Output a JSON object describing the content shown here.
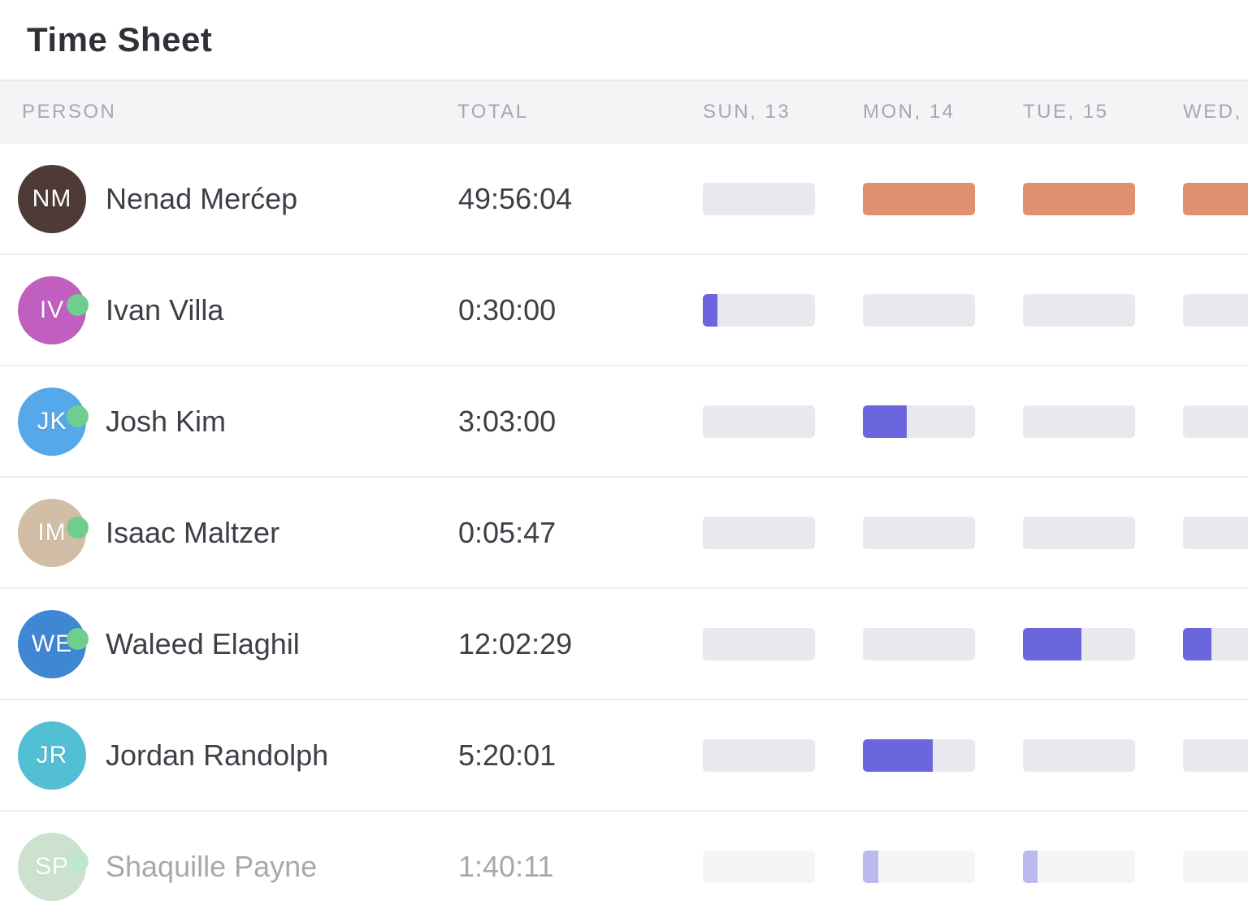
{
  "title": "Time Sheet",
  "colors": {
    "bar_track": "#e8e9ee",
    "orange": "#e09070",
    "purple": "#6c66de",
    "online_green": "#6fcd8e",
    "header_bg": "#f4f4f6",
    "header_text": "#a4a8b1",
    "name_text": "#3c4046"
  },
  "table": {
    "columns": {
      "person": "PERSON",
      "total": "TOTAL",
      "days": [
        "SUN, 13",
        "MON, 14",
        "TUE, 15",
        "WED,"
      ]
    },
    "rows": [
      {
        "name": "Nenad Merćep",
        "total": "49:56:04",
        "initials": "NM",
        "avatar_bg": "#4e3b36",
        "avatar_type": "photo",
        "online": false,
        "faded": false,
        "bar_color": "#e09070",
        "day_fill_pct": [
          0,
          100,
          100,
          100
        ]
      },
      {
        "name": "Ivan Villa",
        "total": "0:30:00",
        "initials": "IV",
        "avatar_bg": "#c05fc0",
        "avatar_type": "photo",
        "online": true,
        "faded": false,
        "bar_color": "#6c66de",
        "day_fill_pct": [
          13,
          0,
          0,
          0
        ]
      },
      {
        "name": "Josh Kim",
        "total": "3:03:00",
        "initials": "JK",
        "avatar_bg": "#55a8ea",
        "avatar_type": "photo",
        "online": true,
        "faded": false,
        "bar_color": "#6c66de",
        "day_fill_pct": [
          0,
          39,
          0,
          0
        ]
      },
      {
        "name": "Isaac Maltzer",
        "total": "0:05:47",
        "initials": "IM",
        "avatar_bg": "#d2bda6",
        "avatar_type": "photo",
        "online": true,
        "faded": false,
        "bar_color": "#6c66de",
        "day_fill_pct": [
          0,
          0,
          0,
          0
        ]
      },
      {
        "name": "Waleed Elaghil",
        "total": "12:02:29",
        "initials": "WE",
        "avatar_bg": "#3f87d2",
        "avatar_type": "initials",
        "online": true,
        "faded": false,
        "bar_color": "#6c66de",
        "day_fill_pct": [
          0,
          0,
          52,
          25
        ]
      },
      {
        "name": "Jordan Randolph",
        "total": "5:20:01",
        "initials": "JR",
        "avatar_bg": "#52bfd4",
        "avatar_type": "photo",
        "online": false,
        "faded": false,
        "bar_color": "#6c66de",
        "day_fill_pct": [
          0,
          62,
          0,
          0
        ]
      },
      {
        "name": "Shaquille Payne",
        "total": "1:40:11",
        "initials": "SP",
        "avatar_bg": "#8fbf97",
        "avatar_type": "photo",
        "online": true,
        "faded": true,
        "bar_color": "#6c66de",
        "day_fill_pct": [
          0,
          14,
          13,
          0
        ]
      }
    ]
  }
}
